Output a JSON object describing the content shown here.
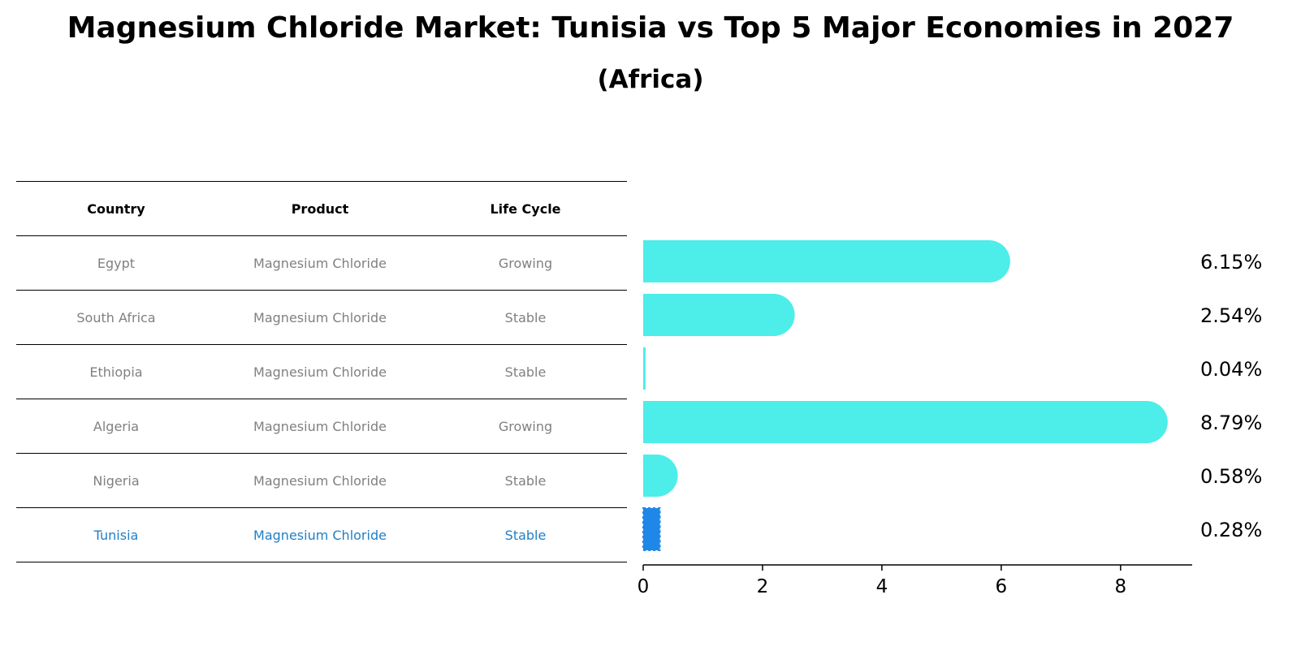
{
  "title": "Magnesium Chloride Market: Tunisia vs Top 5 Major Economies in 2027",
  "subtitle": "(Africa)",
  "table": {
    "headers": [
      "Country",
      "Product",
      "Life Cycle"
    ],
    "rows": [
      [
        "Egypt",
        "Magnesium Chloride",
        "Growing"
      ],
      [
        "South Africa",
        "Magnesium Chloride",
        "Stable"
      ],
      [
        "Ethiopia",
        "Magnesium Chloride",
        "Stable"
      ],
      [
        "Algeria",
        "Magnesium Chloride",
        "Growing"
      ],
      [
        "Nigeria",
        "Magnesium Chloride",
        "Stable"
      ],
      [
        "Tunisia",
        "Magnesium Chloride",
        "Stable"
      ]
    ]
  },
  "colors": {
    "bar": "#4dedea",
    "highlight_bar": "#1f87e8",
    "highlight_text": "#1f7fc7",
    "row_text": "#808080"
  },
  "chart_data": {
    "type": "bar",
    "orientation": "horizontal",
    "categories": [
      "Egypt",
      "South Africa",
      "Ethiopia",
      "Algeria",
      "Nigeria",
      "Tunisia"
    ],
    "values": [
      6.15,
      2.54,
      0.04,
      8.79,
      0.58,
      0.28
    ],
    "value_labels": [
      "6.15%",
      "2.54%",
      "0.04%",
      "8.79%",
      "0.58%",
      "0.28%"
    ],
    "highlight": "Tunisia",
    "xlim": [
      0,
      9.2
    ],
    "xticks": [
      0,
      2,
      4,
      6,
      8
    ],
    "xtick_labels": [
      "0",
      "2",
      "4",
      "6",
      "8"
    ]
  }
}
